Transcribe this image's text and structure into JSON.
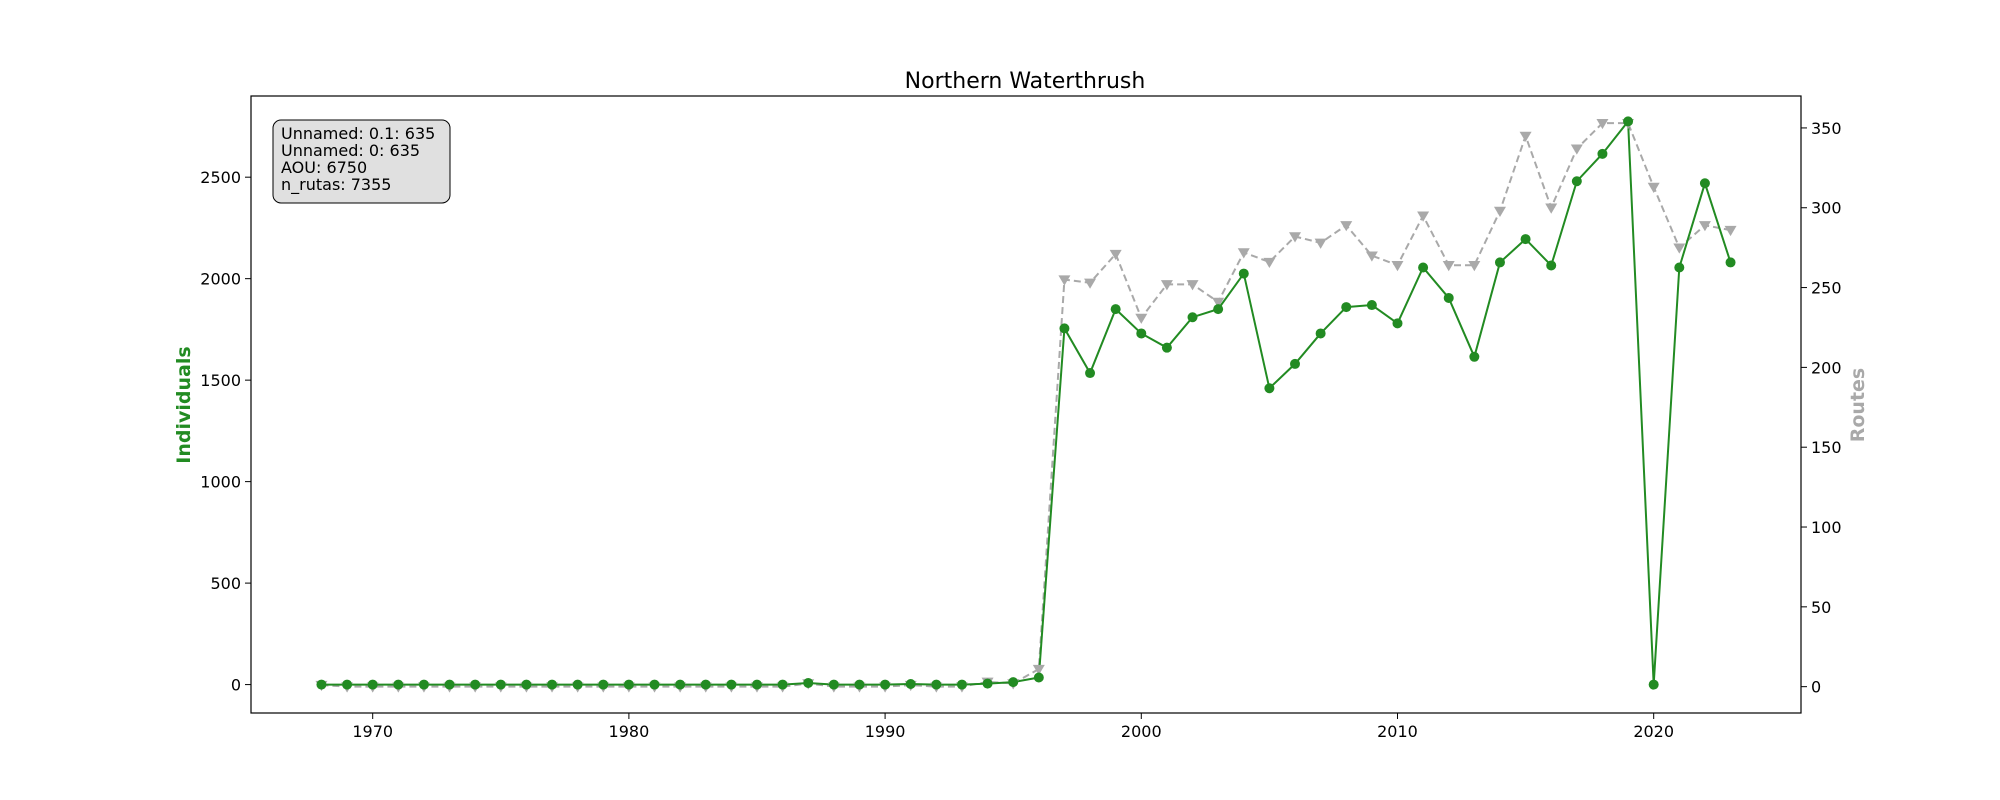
{
  "chart_data": {
    "type": "line",
    "title": "Northern Waterthrush",
    "ylabel_left": "Individuals",
    "ylabel_right": "Routes",
    "xlim": [
      1965.25,
      2025.75
    ],
    "ylim_left": [
      -140,
      2900
    ],
    "ylim_right": [
      -16.5,
      370
    ],
    "x_ticks": [
      1970,
      1980,
      1990,
      2000,
      2010,
      2020
    ],
    "y_left_ticks": [
      0,
      500,
      1000,
      1500,
      2000,
      2500
    ],
    "y_right_ticks": [
      0,
      50,
      100,
      150,
      200,
      250,
      300,
      350
    ],
    "grid": false,
    "colors": {
      "individuals": "#228b22",
      "routes": "#a9a9a9",
      "ylabel_left": "#228b22",
      "ylabel_right": "#a9a9a9",
      "infobox_fill": "#e0e0e0"
    },
    "info_box": {
      "position": "top-left",
      "lines": [
        "Unnamed: 0.1: 635",
        "Unnamed: 0: 635",
        "AOU: 6750",
        "n_rutas: 7355"
      ]
    },
    "x": [
      1968,
      1969,
      1970,
      1971,
      1972,
      1973,
      1974,
      1975,
      1976,
      1977,
      1978,
      1979,
      1980,
      1981,
      1982,
      1983,
      1984,
      1985,
      1986,
      1987,
      1988,
      1989,
      1990,
      1991,
      1992,
      1993,
      1994,
      1995,
      1996,
      1997,
      1998,
      1999,
      2000,
      2001,
      2002,
      2003,
      2004,
      2005,
      2006,
      2007,
      2008,
      2009,
      2010,
      2011,
      2012,
      2013,
      2014,
      2015,
      2016,
      2017,
      2018,
      2019,
      2020,
      2021,
      2022,
      2023
    ],
    "series": [
      {
        "name": "Individuals",
        "axis": "left",
        "marker": "circle",
        "line": "solid",
        "values": [
          0,
          0,
          0,
          0,
          0,
          0,
          0,
          0,
          0,
          0,
          0,
          0,
          0,
          0,
          0,
          0,
          0,
          0,
          0,
          8,
          0,
          0,
          0,
          3,
          0,
          0,
          5,
          12,
          35,
          1755,
          1535,
          1850,
          1730,
          1660,
          1810,
          1850,
          2025,
          1460,
          1580,
          1730,
          1860,
          1870,
          1780,
          2055,
          1905,
          1615,
          2080,
          2195,
          2065,
          2480,
          2615,
          2775,
          0,
          2055,
          2470,
          2080
        ]
      },
      {
        "name": "Routes",
        "axis": "right",
        "marker": "triangle-down",
        "line": "dashed",
        "values": [
          1,
          0,
          0,
          0,
          0,
          0,
          0,
          0,
          0,
          0,
          0,
          0,
          0,
          0,
          0,
          0,
          0,
          0,
          0,
          2,
          0,
          0,
          0,
          1,
          0,
          0,
          3,
          2,
          11,
          255,
          253,
          271,
          231,
          252,
          252,
          241,
          272,
          266,
          282,
          278,
          289,
          270,
          264,
          295,
          264,
          264,
          298,
          345,
          300,
          337,
          353,
          353,
          313,
          275,
          289,
          286
        ]
      }
    ]
  }
}
